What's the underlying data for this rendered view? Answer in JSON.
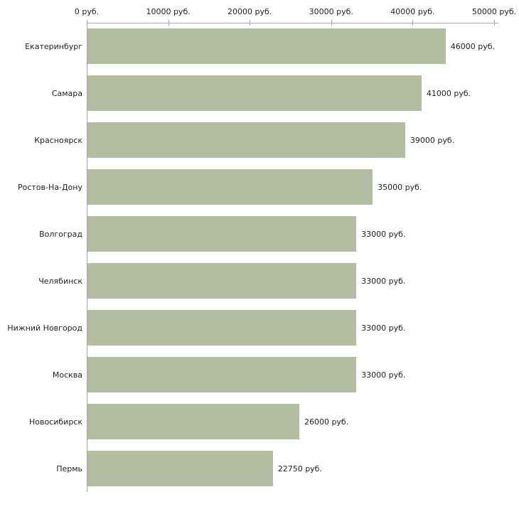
{
  "chart_data": {
    "type": "bar",
    "orientation": "horizontal",
    "title": "",
    "xlabel": "",
    "ylabel": "",
    "categories": [
      "Екатеринбург",
      "Самара",
      "Красноярск",
      "Ростов-На-Дону",
      "Волгоград",
      "Челябинск",
      "Нижний Новгород",
      "Москва",
      "Новосибирск",
      "Пермь"
    ],
    "values": [
      46000,
      41000,
      39000,
      35000,
      33000,
      33000,
      33000,
      33000,
      26000,
      22750
    ],
    "value_labels": [
      "46000 руб.",
      "41000 руб.",
      "39000 руб.",
      "35000 руб.",
      "33000 руб.",
      "33000 руб.",
      "33000 руб.",
      "33000 руб.",
      "26000 руб.",
      "22750 руб."
    ],
    "x_ticks": [
      0,
      10000,
      20000,
      30000,
      40000,
      50000
    ],
    "x_tick_labels": [
      "0 руб.",
      "10000 руб.",
      "20000 руб.",
      "30000 руб.",
      "40000 руб.",
      "50000 руб."
    ],
    "xlim": [
      0,
      50000
    ],
    "grid": false,
    "legend": "none",
    "axis_position": "top",
    "bar_color": "#b3bda1",
    "axis_color": "#a6a6a6",
    "text_color": "#222222"
  }
}
